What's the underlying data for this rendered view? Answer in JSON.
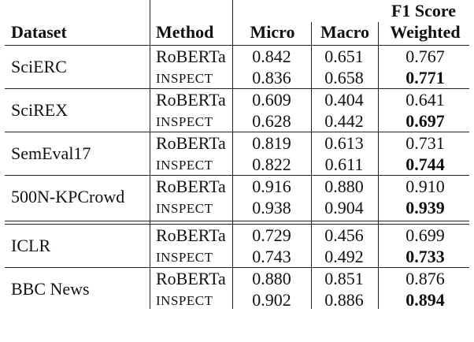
{
  "header": {
    "group": "F1 Score",
    "dataset": "Dataset",
    "method": "Method",
    "micro": "Micro",
    "macro": "Macro",
    "weighted": "Weighted"
  },
  "rows": [
    {
      "dataset": "SciERC",
      "r": {
        "method": "RoBERTa",
        "micro": "0.842",
        "macro": "0.651",
        "weighted": "0.767"
      },
      "i": {
        "method": "INSPECT",
        "micro": "0.836",
        "macro": "0.658",
        "weighted": "0.771"
      }
    },
    {
      "dataset": "SciREX",
      "r": {
        "method": "RoBERTa",
        "micro": "0.609",
        "macro": "0.404",
        "weighted": "0.641"
      },
      "i": {
        "method": "INSPECT",
        "micro": "0.628",
        "macro": "0.442",
        "weighted": "0.697"
      }
    },
    {
      "dataset": "SemEval17",
      "r": {
        "method": "RoBERTa",
        "micro": "0.819",
        "macro": "0.613",
        "weighted": "0.731"
      },
      "i": {
        "method": "INSPECT",
        "micro": "0.822",
        "macro": "0.611",
        "weighted": "0.744"
      }
    },
    {
      "dataset": "500N-KPCrowd",
      "r": {
        "method": "RoBERTa",
        "micro": "0.916",
        "macro": "0.880",
        "weighted": "0.910"
      },
      "i": {
        "method": "INSPECT",
        "micro": "0.938",
        "macro": "0.904",
        "weighted": "0.939"
      }
    },
    {
      "dataset": "ICLR",
      "r": {
        "method": "RoBERTa",
        "micro": "0.729",
        "macro": "0.456",
        "weighted": "0.699"
      },
      "i": {
        "method": "INSPECT",
        "micro": "0.743",
        "macro": "0.492",
        "weighted": "0.733"
      }
    },
    {
      "dataset": "BBC News",
      "r": {
        "method": "RoBERTa",
        "micro": "0.880",
        "macro": "0.851",
        "weighted": "0.876"
      },
      "i": {
        "method": "INSPECT",
        "micro": "0.902",
        "macro": "0.886",
        "weighted": "0.894"
      }
    }
  ]
}
